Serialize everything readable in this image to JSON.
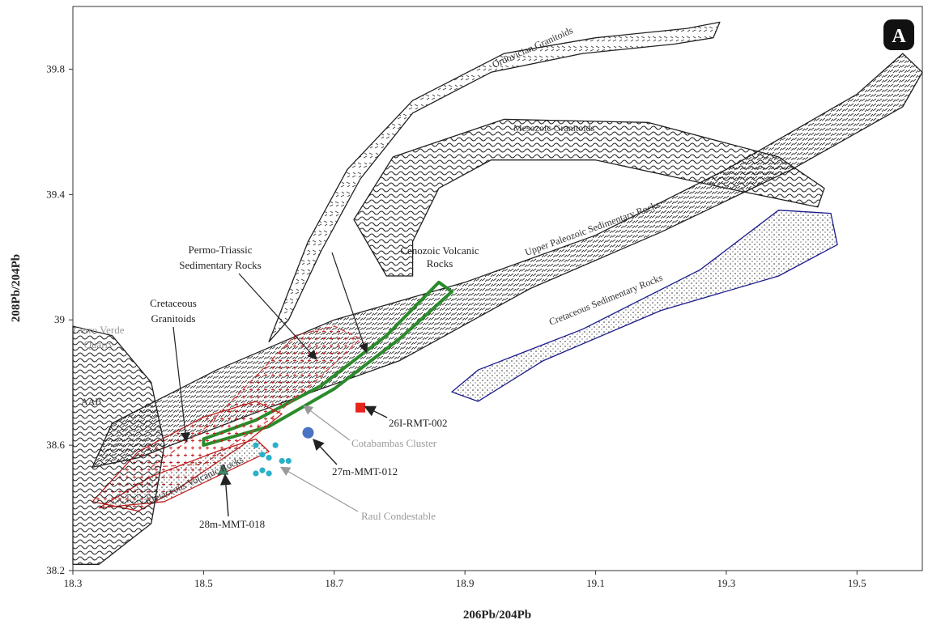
{
  "chart_data": {
    "type": "scatter",
    "panel_label": "A",
    "xlabel": "206Pb/204Pb",
    "ylabel": "208Pb/204Pb",
    "xlim": [
      18.3,
      19.6
    ],
    "ylim": [
      38.2,
      40.0
    ],
    "x_ticks": [
      "18.3",
      "18.5",
      "18.7",
      "18.9",
      "19.1",
      "19.3",
      "19.5"
    ],
    "y_ticks": [
      "38.2",
      "38.6",
      "39",
      "39.4",
      "39.8"
    ],
    "grid": false,
    "fields": [
      {
        "name": "Ordovician Granitoids",
        "fill": "dashes",
        "outline": "#222222",
        "polygon": [
          [
            18.6,
            38.93
          ],
          [
            18.66,
            39.25
          ],
          [
            18.72,
            39.48
          ],
          [
            18.82,
            39.7
          ],
          [
            18.96,
            39.85
          ],
          [
            19.1,
            39.9
          ],
          [
            19.24,
            39.93
          ],
          [
            19.29,
            39.95
          ],
          [
            19.28,
            39.9
          ],
          [
            19.22,
            39.88
          ],
          [
            19.08,
            39.85
          ],
          [
            18.94,
            39.79
          ],
          [
            18.82,
            39.66
          ],
          [
            18.74,
            39.45
          ],
          [
            18.68,
            39.22
          ],
          [
            18.63,
            39.0
          ]
        ]
      },
      {
        "name": "Mesozoic Granitoids",
        "fill": "waves",
        "outline": "#222222",
        "polygon": [
          [
            18.78,
            39.14
          ],
          [
            18.73,
            39.32
          ],
          [
            18.79,
            39.52
          ],
          [
            18.96,
            39.64
          ],
          [
            19.18,
            39.63
          ],
          [
            19.38,
            39.52
          ],
          [
            19.45,
            39.42
          ],
          [
            19.44,
            39.36
          ],
          [
            19.3,
            39.42
          ],
          [
            19.1,
            39.51
          ],
          [
            18.94,
            39.51
          ],
          [
            18.86,
            39.42
          ],
          [
            18.82,
            39.25
          ],
          [
            18.82,
            39.14
          ]
        ]
      },
      {
        "name": "Upper Paleozoic Sedimentary Rocks",
        "fill": "dense-dashes",
        "outline": "#222222",
        "polygon": [
          [
            18.33,
            38.53
          ],
          [
            18.36,
            38.67
          ],
          [
            18.52,
            38.84
          ],
          [
            18.7,
            39.0
          ],
          [
            18.9,
            39.12
          ],
          [
            19.1,
            39.27
          ],
          [
            19.3,
            39.48
          ],
          [
            19.5,
            39.72
          ],
          [
            19.57,
            39.85
          ],
          [
            19.6,
            39.79
          ],
          [
            19.57,
            39.68
          ],
          [
            19.4,
            39.48
          ],
          [
            19.2,
            39.28
          ],
          [
            19.0,
            39.1
          ],
          [
            18.8,
            38.87
          ],
          [
            18.6,
            38.72
          ],
          [
            18.4,
            38.56
          ]
        ]
      },
      {
        "name": "Cretaceous Sedimentary Rocks",
        "fill": "dots",
        "outline": "#1a1a8c",
        "polygon": [
          [
            18.88,
            38.77
          ],
          [
            18.92,
            38.84
          ],
          [
            19.08,
            38.97
          ],
          [
            19.26,
            39.16
          ],
          [
            19.38,
            39.35
          ],
          [
            19.46,
            39.34
          ],
          [
            19.47,
            39.24
          ],
          [
            19.38,
            39.14
          ],
          [
            19.2,
            39.03
          ],
          [
            19.02,
            38.87
          ],
          [
            18.92,
            38.74
          ]
        ]
      },
      {
        "name": "Cenozoic Volcanic Rocks",
        "fill": "none",
        "outline": "#2b8a2b",
        "polygon": [
          [
            18.5,
            38.62
          ],
          [
            18.58,
            38.68
          ],
          [
            18.68,
            38.79
          ],
          [
            18.78,
            38.95
          ],
          [
            18.86,
            39.12
          ],
          [
            18.88,
            39.09
          ],
          [
            18.8,
            38.94
          ],
          [
            18.7,
            38.78
          ],
          [
            18.6,
            38.66
          ],
          [
            18.5,
            38.6
          ]
        ]
      },
      {
        "name": "Permo-Triassic Sedimentary Rocks",
        "fill": "crosses",
        "outline": "#d04040",
        "polygon": [
          [
            18.42,
            38.53
          ],
          [
            18.5,
            38.65
          ],
          [
            18.58,
            38.82
          ],
          [
            18.64,
            38.95
          ],
          [
            18.7,
            38.98
          ],
          [
            18.74,
            38.94
          ],
          [
            18.68,
            38.82
          ],
          [
            18.6,
            38.68
          ],
          [
            18.5,
            38.54
          ]
        ]
      },
      {
        "name": "Cretaceous Granitoids",
        "fill": "crosses",
        "outline": "#c02020",
        "polygon": [
          [
            18.33,
            38.42
          ],
          [
            18.4,
            38.58
          ],
          [
            18.5,
            38.69
          ],
          [
            18.58,
            38.74
          ],
          [
            18.62,
            38.7
          ],
          [
            18.56,
            38.6
          ],
          [
            18.46,
            38.46
          ],
          [
            18.4,
            38.39
          ]
        ]
      },
      {
        "name": "Cretaceous Volcanic Rocks",
        "fill": "dots",
        "outline": "#c02020",
        "polygon": [
          [
            18.34,
            38.4
          ],
          [
            18.42,
            38.5
          ],
          [
            18.52,
            38.58
          ],
          [
            18.58,
            38.62
          ],
          [
            18.6,
            38.58
          ],
          [
            18.52,
            38.5
          ],
          [
            18.44,
            38.42
          ]
        ]
      },
      {
        "name": "Cerro Verde Quarry",
        "fill": "waves",
        "outline": "#222222",
        "polygon": [
          [
            18.3,
            38.22
          ],
          [
            18.3,
            38.98
          ],
          [
            18.36,
            38.95
          ],
          [
            18.42,
            38.8
          ],
          [
            18.44,
            38.6
          ],
          [
            18.42,
            38.35
          ],
          [
            18.34,
            38.22
          ]
        ]
      }
    ],
    "series": [
      {
        "name": "26I-RMT-002",
        "marker": "square",
        "color": "#e8241c",
        "x": [
          18.74
        ],
        "y": [
          38.72
        ]
      },
      {
        "name": "27m-MMT-012",
        "marker": "circle",
        "color": "#4a73c4",
        "x": [
          18.66
        ],
        "y": [
          38.64
        ]
      },
      {
        "name": "28m-MMT-018",
        "marker": "triangle",
        "color": "#3f8c6a",
        "x": [
          18.53
        ],
        "y": [
          38.52
        ]
      },
      {
        "name": "Raul Condestable",
        "marker": "circle",
        "color": "#2ab0c8",
        "x": [
          18.58,
          18.59,
          18.6,
          18.61,
          18.59,
          18.58,
          18.6,
          18.62,
          18.63
        ],
        "y": [
          38.6,
          38.57,
          38.56,
          38.6,
          38.52,
          38.51,
          38.51,
          38.55,
          38.55
        ]
      }
    ],
    "annotations": {
      "permo_triassic": [
        "Permo-Triassic",
        "Sedimentary Rocks"
      ],
      "cretaceous_granitoids": [
        "Cretaceous",
        "Granitoids"
      ],
      "cerro_verde": [
        "Cerro Verde",
        "Quarry"
      ],
      "cenozoic_volcanic": [
        "Cenozoic Volcanic",
        "Rocks"
      ],
      "ordovician": "Ordovician Granitoids",
      "mesozoic": "Mesozoic Granitoids",
      "upper_paleozoic": "Upper Paleozoic Sedimentary Rocks",
      "cretaceous_sedimentary": "Cretaceous Sedimentary Rocks",
      "cretaceous_volcanic": "Cretaceous Volcanic Rocks",
      "aab": "AAB",
      "cotabambas": "Cotabambas Cluster",
      "raul": "Raul Condestable",
      "s26": "26I-RMT-002",
      "s27": "27m-MMT-012",
      "s28": "28m-MMT-018"
    }
  }
}
